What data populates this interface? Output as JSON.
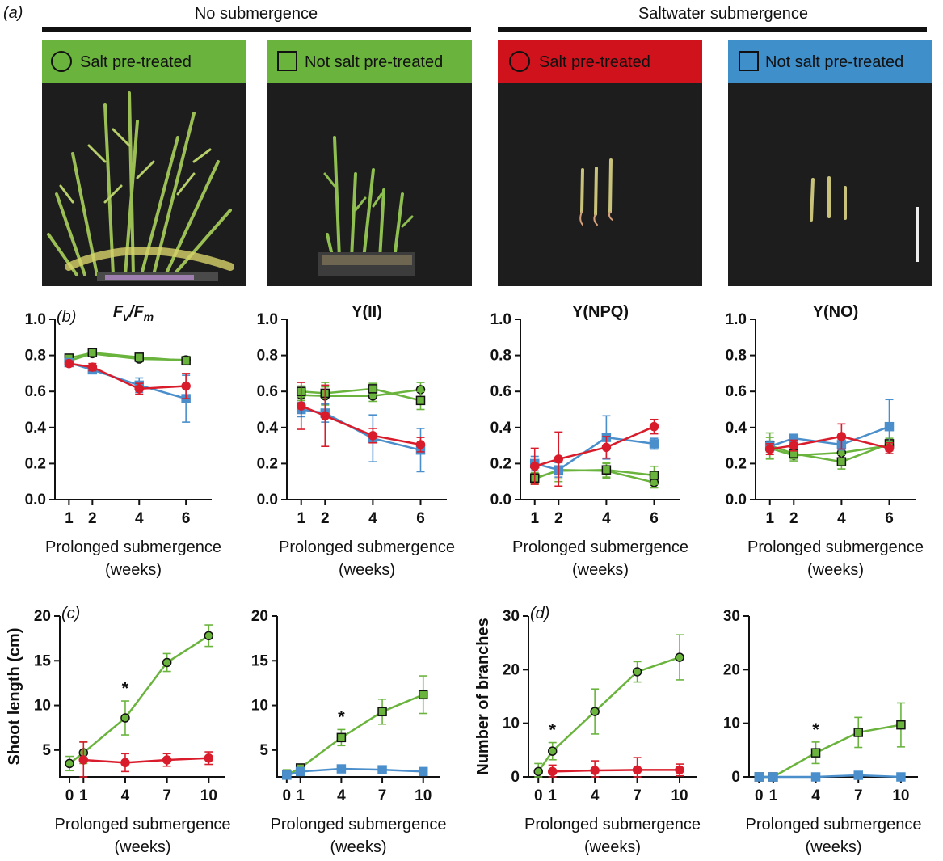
{
  "panel_a": {
    "label": "(a)",
    "groups": [
      "No submergence",
      "Saltwater submergence"
    ],
    "photos": [
      {
        "label": "Salt pre-treated",
        "marker": "circle",
        "color": "#6ab43e"
      },
      {
        "label": "Not salt pre-treated",
        "marker": "square",
        "color": "#6ab43e"
      },
      {
        "label": "Salt pre-treated",
        "marker": "circle",
        "color": "#d0121d"
      },
      {
        "label": "Not salt pre-treated",
        "marker": "square",
        "color": "#3f8fcb"
      }
    ]
  },
  "colors": {
    "green": "#6ab43e",
    "red": "#d91c2b",
    "blue": "#4a8fcc"
  },
  "chart_data": [
    {
      "id": "fvfm",
      "panel": "(b)",
      "type": "line",
      "title": "Fv/Fm",
      "title_parts": [
        "F",
        "v",
        "/F",
        "m"
      ],
      "xlabel": [
        "Prolonged submergence",
        "(weeks)"
      ],
      "ylabel": "",
      "x_ticks": [
        1,
        2,
        4,
        6
      ],
      "xlim": [
        0.4,
        7.1
      ],
      "ylim": [
        0,
        1.0
      ],
      "y_ticks": [
        "0.0",
        "0.2",
        "0.4",
        "0.6",
        "0.8",
        "1.0"
      ],
      "series": [
        {
          "color": "green",
          "marker": "circle",
          "x": [
            1,
            2,
            4,
            6
          ],
          "y": [
            0.77,
            0.81,
            0.78,
            0.775
          ],
          "err": [
            0.015,
            0.015,
            0.015,
            0.02
          ]
        },
        {
          "color": "green",
          "marker": "square",
          "x": [
            1,
            2,
            4,
            6
          ],
          "y": [
            0.785,
            0.815,
            0.79,
            0.77
          ],
          "err": [
            0.02,
            0.015,
            0.02,
            0.02
          ]
        },
        {
          "color": "blue",
          "marker": "square",
          "x": [
            1,
            2,
            4,
            6
          ],
          "y": [
            0.76,
            0.72,
            0.635,
            0.56
          ],
          "err": [
            0.02,
            0.02,
            0.04,
            0.13
          ]
        },
        {
          "color": "red",
          "marker": "circle",
          "x": [
            1,
            2,
            4,
            6
          ],
          "y": [
            0.755,
            0.735,
            0.615,
            0.63
          ],
          "err": [
            0.015,
            0.02,
            0.03,
            0.07
          ]
        }
      ]
    },
    {
      "id": "yii",
      "panel": "",
      "type": "line",
      "title": "Y(II)",
      "xlabel": [
        "Prolonged submergence",
        "(weeks)"
      ],
      "ylabel": "",
      "x_ticks": [
        1,
        2,
        4,
        6
      ],
      "xlim": [
        0.4,
        7.1
      ],
      "ylim": [
        0,
        1.0
      ],
      "y_ticks": [
        "0.0",
        "0.2",
        "0.4",
        "0.6",
        "0.8",
        "1.0"
      ],
      "series": [
        {
          "color": "green",
          "marker": "circle",
          "x": [
            1,
            2,
            4,
            6
          ],
          "y": [
            0.58,
            0.575,
            0.575,
            0.61
          ],
          "err": [
            0.03,
            0.05,
            0.03,
            0.04
          ]
        },
        {
          "color": "green",
          "marker": "square",
          "x": [
            1,
            2,
            4,
            6
          ],
          "y": [
            0.6,
            0.59,
            0.615,
            0.55
          ],
          "err": [
            0.03,
            0.06,
            0.03,
            0.05
          ]
        },
        {
          "color": "blue",
          "marker": "square",
          "x": [
            1,
            2,
            4,
            6
          ],
          "y": [
            0.5,
            0.48,
            0.34,
            0.275
          ],
          "err": [
            0.04,
            0.05,
            0.13,
            0.12
          ]
        },
        {
          "color": "red",
          "marker": "circle",
          "x": [
            1,
            2,
            4,
            6
          ],
          "y": [
            0.52,
            0.465,
            0.355,
            0.305
          ],
          "err": [
            0.13,
            0.17,
            0.04,
            0.04
          ]
        }
      ]
    },
    {
      "id": "ynpq",
      "panel": "",
      "type": "line",
      "title": "Y(NPQ)",
      "xlabel": [
        "Prolonged submergence",
        "(weeks)"
      ],
      "ylabel": "",
      "x_ticks": [
        1,
        2,
        4,
        6
      ],
      "xlim": [
        0.4,
        7.1
      ],
      "ylim": [
        0,
        1.0
      ],
      "y_ticks": [
        "0.0",
        "0.2",
        "0.4",
        "0.6",
        "0.8",
        "1.0"
      ],
      "series": [
        {
          "color": "green",
          "marker": "circle",
          "x": [
            1,
            2,
            4,
            6
          ],
          "y": [
            0.115,
            0.165,
            0.16,
            0.095
          ],
          "err": [
            0.03,
            0.05,
            0.04,
            0.03
          ]
        },
        {
          "color": "green",
          "marker": "square",
          "x": [
            1,
            2,
            4,
            6
          ],
          "y": [
            0.12,
            0.16,
            0.165,
            0.135
          ],
          "err": [
            0.03,
            0.06,
            0.04,
            0.05
          ]
        },
        {
          "color": "blue",
          "marker": "square",
          "x": [
            1,
            2,
            4,
            6
          ],
          "y": [
            0.2,
            0.165,
            0.345,
            0.31
          ],
          "err": [
            0.04,
            0.04,
            0.12,
            0.03
          ]
        },
        {
          "color": "red",
          "marker": "circle",
          "x": [
            1,
            2,
            4,
            6
          ],
          "y": [
            0.185,
            0.225,
            0.29,
            0.405
          ],
          "err": [
            0.1,
            0.15,
            0.06,
            0.04
          ]
        }
      ]
    },
    {
      "id": "yno",
      "panel": "",
      "type": "line",
      "title": "Y(NO)",
      "xlabel": [
        "Prolonged submergence",
        "(weeks)"
      ],
      "ylabel": "",
      "x_ticks": [
        1,
        2,
        4,
        6
      ],
      "xlim": [
        0.4,
        7.1
      ],
      "ylim": [
        0,
        1.0
      ],
      "y_ticks": [
        "0.0",
        "0.2",
        "0.4",
        "0.6",
        "0.8",
        "1.0"
      ],
      "series": [
        {
          "color": "green",
          "marker": "circle",
          "x": [
            1,
            2,
            4,
            6
          ],
          "y": [
            0.285,
            0.245,
            0.26,
            0.3
          ],
          "err": [
            0.06,
            0.03,
            0.04,
            0.03
          ]
        },
        {
          "color": "green",
          "marker": "square",
          "x": [
            1,
            2,
            4,
            6
          ],
          "y": [
            0.3,
            0.255,
            0.21,
            0.31
          ],
          "err": [
            0.07,
            0.03,
            0.04,
            0.03
          ]
        },
        {
          "color": "blue",
          "marker": "square",
          "x": [
            1,
            2,
            4,
            6
          ],
          "y": [
            0.295,
            0.34,
            0.305,
            0.405
          ],
          "err": [
            0.03,
            0.02,
            0.03,
            0.15
          ]
        },
        {
          "color": "red",
          "marker": "circle",
          "x": [
            1,
            2,
            4,
            6
          ],
          "y": [
            0.28,
            0.3,
            0.35,
            0.285
          ],
          "err": [
            0.03,
            0.03,
            0.07,
            0.03
          ]
        }
      ]
    },
    {
      "id": "shoot-salt",
      "panel": "(c)",
      "type": "line",
      "title": "",
      "xlabel": [
        "Prolonged submergence",
        "(weeks)"
      ],
      "ylabel": "Shoot length (cm)",
      "x_ticks": [
        0,
        1,
        4,
        7,
        10
      ],
      "xlim": [
        -0.7,
        11.2
      ],
      "ylim": [
        2,
        20
      ],
      "y_ticks": [
        "5",
        "10",
        "15",
        "20"
      ],
      "y_tick_values": [
        5,
        10,
        15,
        20
      ],
      "annotations": [
        {
          "text": "*",
          "x": 4
        }
      ],
      "series": [
        {
          "color": "green",
          "marker": "circle",
          "x": [
            0,
            1,
            4,
            7,
            10
          ],
          "y": [
            3.5,
            4.7,
            8.6,
            14.8,
            17.8
          ],
          "err": [
            0.8,
            1.2,
            1.9,
            1.0,
            1.2
          ]
        },
        {
          "color": "red",
          "marker": "circle",
          "x": [
            1,
            4,
            7,
            10
          ],
          "y": [
            3.9,
            3.6,
            3.9,
            4.1
          ],
          "err": [
            2.0,
            1.0,
            0.7,
            0.7
          ]
        }
      ]
    },
    {
      "id": "shoot-nosalt",
      "panel": "",
      "type": "line",
      "title": "",
      "xlabel": [
        "Prolonged submergence",
        "(weeks)"
      ],
      "ylabel": "",
      "x_ticks": [
        0,
        1,
        4,
        7,
        10
      ],
      "xlim": [
        -0.7,
        11.2
      ],
      "ylim": [
        2,
        20
      ],
      "y_ticks": [
        "5",
        "10",
        "15",
        "20"
      ],
      "y_tick_values": [
        5,
        10,
        15,
        20
      ],
      "annotations": [
        {
          "text": "*",
          "x": 4
        }
      ],
      "series": [
        {
          "color": "green",
          "marker": "square",
          "x": [
            0,
            1,
            4,
            7,
            10
          ],
          "y": [
            2.2,
            3.0,
            6.4,
            9.3,
            11.2
          ],
          "err": [
            0.6,
            0.4,
            0.9,
            1.4,
            2.1
          ]
        },
        {
          "color": "blue",
          "marker": "square",
          "x": [
            0,
            1,
            4,
            7,
            10
          ],
          "y": [
            2.2,
            2.6,
            2.9,
            2.8,
            2.6
          ],
          "err": [
            0.3,
            0.3,
            0.3,
            0.3,
            0.3
          ]
        }
      ]
    },
    {
      "id": "branches-salt",
      "panel": "(d)",
      "type": "line",
      "title": "",
      "xlabel": [
        "Prolonged submergence",
        "(weeks)"
      ],
      "ylabel": "Number of branches",
      "x_ticks": [
        0,
        1,
        4,
        7,
        10
      ],
      "xlim": [
        -0.7,
        11.2
      ],
      "ylim": [
        0,
        30
      ],
      "y_ticks": [
        "0",
        "10",
        "20",
        "30"
      ],
      "y_tick_values": [
        0,
        10,
        20,
        30
      ],
      "annotations": [
        {
          "text": "*",
          "x": 1
        }
      ],
      "series": [
        {
          "color": "green",
          "marker": "circle",
          "x": [
            0,
            1,
            4,
            7,
            10
          ],
          "y": [
            1.0,
            4.8,
            12.2,
            19.6,
            22.3
          ],
          "err": [
            1.5,
            1.6,
            4.2,
            1.9,
            4.2
          ]
        },
        {
          "color": "red",
          "marker": "circle",
          "x": [
            1,
            4,
            7,
            10
          ],
          "y": [
            1.0,
            1.2,
            1.3,
            1.3
          ],
          "err": [
            1.2,
            1.8,
            2.3,
            1.1
          ]
        }
      ]
    },
    {
      "id": "branches-nosalt",
      "panel": "",
      "type": "line",
      "title": "",
      "xlabel": [
        "Prolonged submergence",
        "(weeks)"
      ],
      "ylabel": "",
      "x_ticks": [
        0,
        1,
        4,
        7,
        10
      ],
      "xlim": [
        -0.7,
        11.2
      ],
      "ylim": [
        0,
        30
      ],
      "y_ticks": [
        "0",
        "10",
        "20",
        "30"
      ],
      "y_tick_values": [
        0,
        10,
        20,
        30
      ],
      "annotations": [
        {
          "text": "*",
          "x": 4
        }
      ],
      "series": [
        {
          "color": "green",
          "marker": "square",
          "x": [
            0,
            1,
            4,
            7,
            10
          ],
          "y": [
            0.0,
            0.0,
            4.5,
            8.3,
            9.7
          ],
          "err": [
            0.2,
            0.2,
            2.0,
            2.8,
            4.1
          ]
        },
        {
          "color": "blue",
          "marker": "square",
          "x": [
            0,
            1,
            4,
            7,
            10
          ],
          "y": [
            0.0,
            0.0,
            0.0,
            0.3,
            0.0
          ],
          "err": [
            0.1,
            0.1,
            0.1,
            0.3,
            0.1
          ]
        }
      ]
    }
  ]
}
